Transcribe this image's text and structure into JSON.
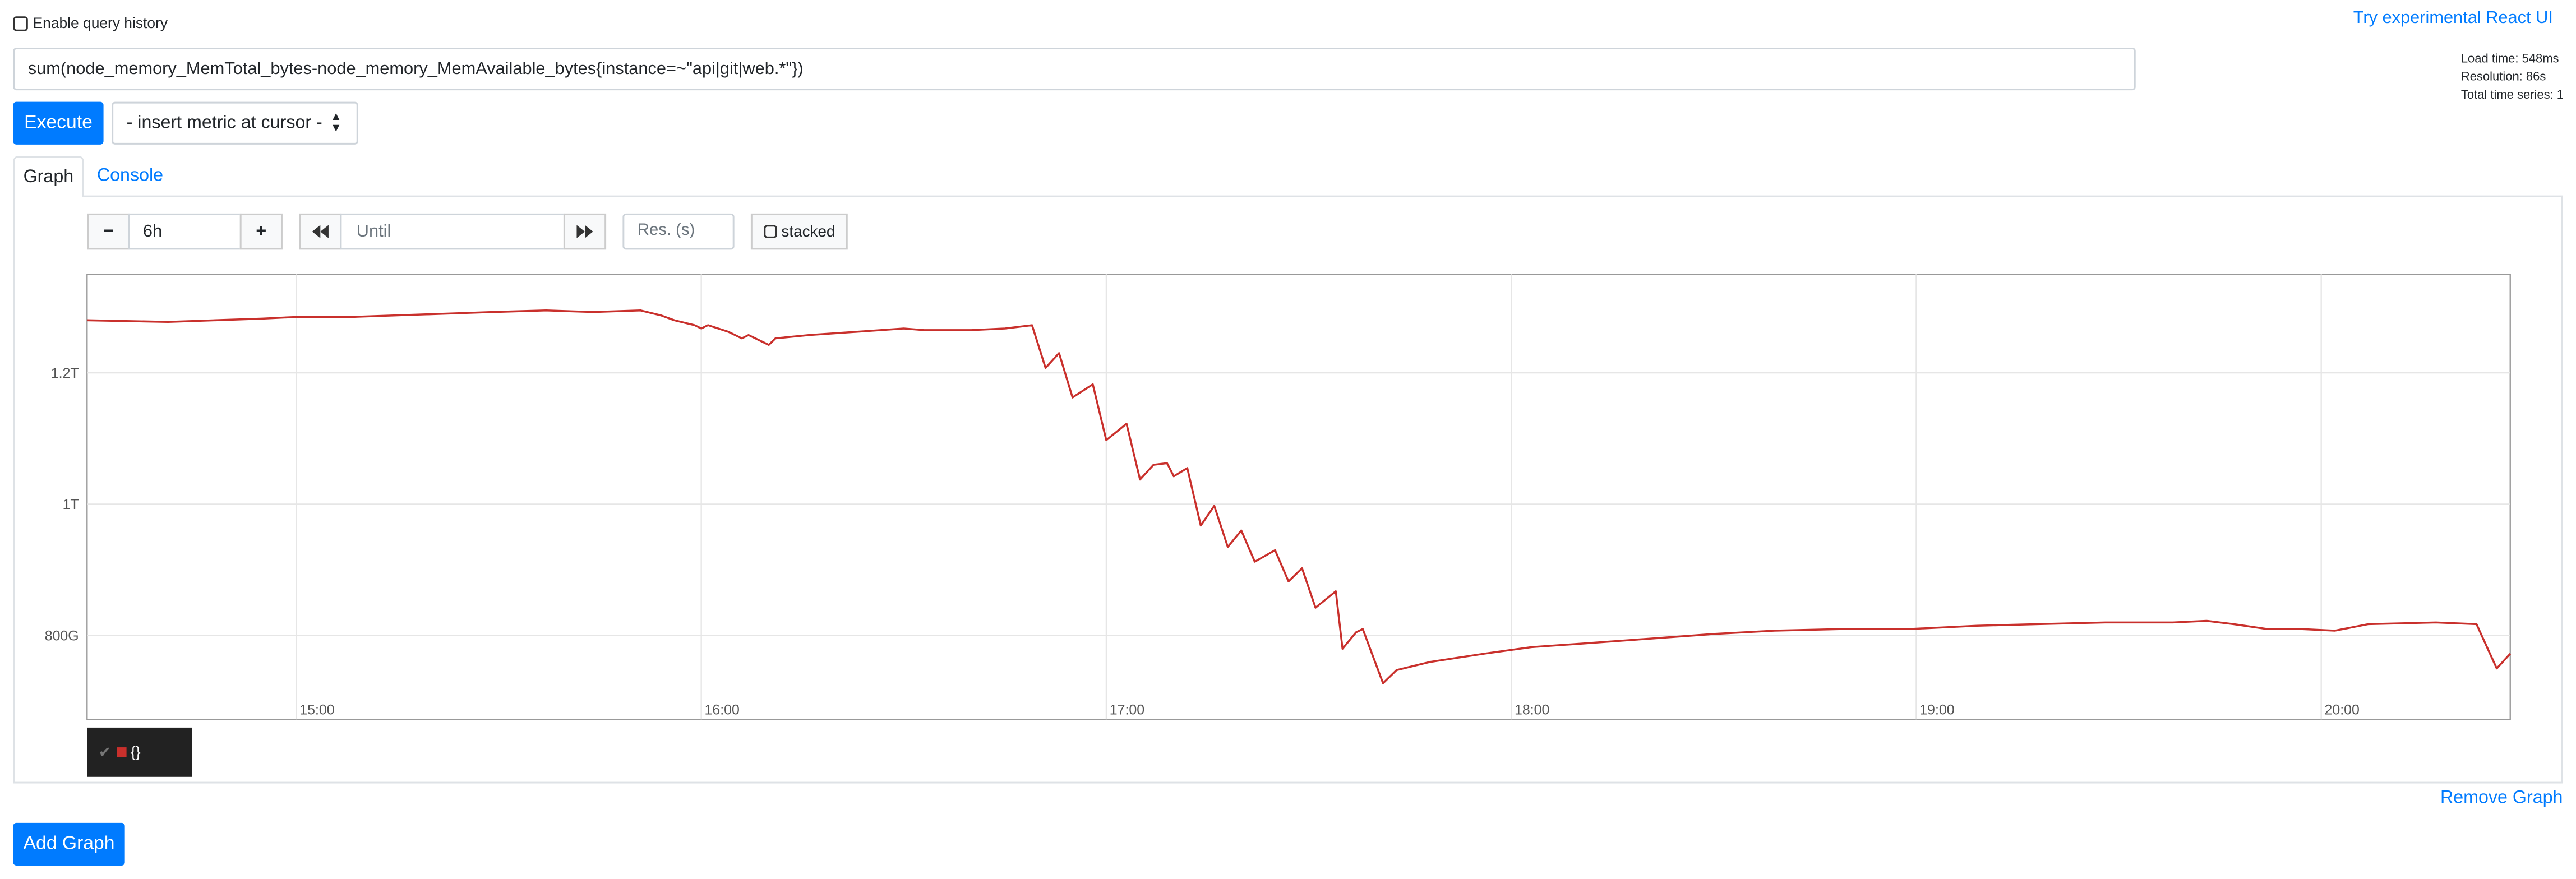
{
  "header": {
    "history_label": "Enable query history",
    "react_link": "Try experimental React UI"
  },
  "query": {
    "expression": "sum(node_memory_MemTotal_bytes-node_memory_MemAvailable_bytes{instance=~\"api|git|web.*\"})",
    "stats": [
      "Load time: 548ms",
      "Resolution: 86s",
      "Total time series: 1"
    ],
    "execute": "Execute",
    "metric_select": "- insert metric at cursor -"
  },
  "tabs": [
    "Graph",
    "Console"
  ],
  "controls": {
    "minus": "−",
    "range": "6h",
    "plus": "+",
    "until": "Until",
    "resolution": "Res. (s)",
    "stacked": "stacked"
  },
  "remove": "Remove Graph",
  "add": "Add Graph",
  "chart_data": {
    "type": "line",
    "x": [
      "14:29",
      "14:41",
      "14:48",
      "14:55",
      "15:00",
      "15:08",
      "15:15",
      "15:22",
      "15:29",
      "15:37",
      "15:44",
      "15:51",
      "15:54",
      "15:56",
      "15:59",
      "16:00",
      "16:01",
      "16:04",
      "16:06",
      "16:07",
      "16:10",
      "16:11",
      "16:16",
      "16:23",
      "16:30",
      "16:33",
      "16:40",
      "16:45",
      "16:49",
      "16:51",
      "16:53",
      "16:55",
      "16:58",
      "17:00",
      "17:03",
      "17:05",
      "17:07",
      "17:09",
      "17:10",
      "17:12",
      "17:14",
      "17:16",
      "17:18",
      "17:20",
      "17:22",
      "17:25",
      "17:27",
      "17:29",
      "17:31",
      "17:34",
      "17:35",
      "17:37",
      "17:38",
      "17:41",
      "17:43",
      "17:48",
      "17:56",
      "18:03",
      "18:10",
      "18:20",
      "18:30",
      "18:39",
      "18:49",
      "18:59",
      "19:09",
      "19:18",
      "19:28",
      "19:38",
      "19:43",
      "19:47",
      "19:52",
      "19:57",
      "20:02",
      "20:07",
      "20:17",
      "20:23",
      "20:26",
      "20:28"
    ],
    "series": [
      {
        "name": "{}",
        "color": "#c9302c",
        "values": [
          1280000000000.0,
          1277500000000.0,
          1280000000000.0,
          1282500000000.0,
          1285000000000.0,
          1285000000000.0,
          1287500000000.0,
          1290000000000.0,
          1292500000000.0,
          1295000000000.0,
          1292500000000.0,
          1295000000000.0,
          1287500000000.0,
          1280000000000.0,
          1272500000000.0,
          1267500000000.0,
          1272500000000.0,
          1262500000000.0,
          1252500000000.0,
          1257500000000.0,
          1242500000000.0,
          1252500000000.0,
          1257500000000.0,
          1262500000000.0,
          1267500000000.0,
          1265000000000.0,
          1265000000000.0,
          1267500000000.0,
          1272500000000.0,
          1207500000000.0,
          1230000000000.0,
          1162500000000.0,
          1182500000000.0,
          1097500000000.0,
          1122500000000.0,
          1037500000000.0,
          1060000000000.0,
          1062500000000.0,
          1042500000000.0,
          1055000000000.0,
          967500000000.0,
          997500000000.0,
          935000000000.0,
          960000000000.0,
          912500000000.0,
          930000000000.0,
          882500000000.0,
          902500000000.0,
          842500000000.0,
          867500000000.0,
          780000000000.0,
          805000000000.0,
          810000000000.0,
          727500000000.0,
          747500000000.0,
          760000000000.0,
          772500000000.0,
          782500000000.0,
          787500000000.0,
          795000000000.0,
          802500000000.0,
          807500000000.0,
          810000000000.0,
          810000000000.0,
          815000000000.0,
          817500000000.0,
          820000000000.0,
          820000000000.0,
          822500000000.0,
          817500000000.0,
          810000000000.0,
          810000000000.0,
          807500000000.0,
          817500000000.0,
          820000000000.0,
          817500000000.0,
          750000000000.0,
          772500000000.0
        ]
      }
    ],
    "xlim": [
      "14:29",
      "20:28"
    ],
    "xticks": [
      "15:00",
      "16:00",
      "17:00",
      "18:00",
      "19:00",
      "20:00"
    ],
    "ylim": [
      672500000000.0,
      1350000000000.0
    ],
    "yticks": [
      {
        "value": 800000000000.0,
        "label": "800G"
      },
      {
        "value": 1000000000000.0,
        "label": "1T"
      },
      {
        "value": 1200000000000.0,
        "label": "1.2T"
      }
    ],
    "grid": true
  }
}
